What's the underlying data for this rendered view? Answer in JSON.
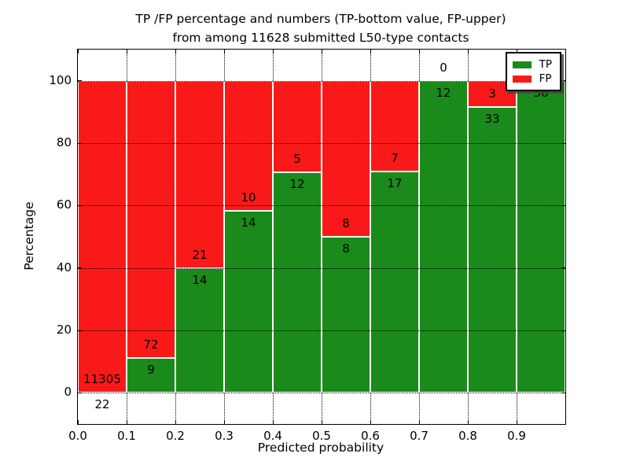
{
  "figure": {
    "title_line1": "TP /FP percentage and numbers (TP-bottom value, FP-upper)",
    "title_line2": "from among 11628 submitted L50-type contacts",
    "xlabel": "Predicted probability",
    "ylabel": "Percentage"
  },
  "legend": {
    "items": [
      {
        "label": "TP",
        "color": "#1a8a1a"
      },
      {
        "label": "FP",
        "color": "#fa1919"
      }
    ]
  },
  "chart_data": {
    "type": "bar",
    "stacked": true,
    "normalized_to_percent": true,
    "title": "TP /FP percentage and numbers (TP-bottom value, FP-upper) from among 11628 submitted L50-type contacts",
    "xlabel": "Predicted probability",
    "ylabel": "Percentage",
    "total_submitted_contacts": 11628,
    "categories": [
      "0.0-0.1",
      "0.1-0.2",
      "0.2-0.3",
      "0.3-0.4",
      "0.4-0.5",
      "0.5-0.6",
      "0.6-0.7",
      "0.7-0.8",
      "0.8-0.9",
      "0.9-1.0"
    ],
    "series": [
      {
        "name": "TP",
        "color": "#1a8a1a",
        "values": [
          22,
          9,
          14,
          14,
          12,
          8,
          17,
          12,
          33,
          56
        ]
      },
      {
        "name": "FP",
        "color": "#fa1919",
        "values": [
          11305,
          72,
          21,
          10,
          5,
          8,
          7,
          0,
          3,
          0
        ]
      }
    ],
    "tp_percent": [
      0.19,
      11.11,
      40.0,
      58.33,
      70.59,
      50.0,
      70.83,
      100.0,
      91.67,
      100.0
    ],
    "tp_labels": [
      "22",
      "9",
      "14",
      "14",
      "12",
      "8",
      "17",
      "12",
      "33",
      "56"
    ],
    "fp_labels": [
      "11305",
      "72",
      "21",
      "10",
      "5",
      "8",
      "7",
      "0",
      "3",
      ""
    ],
    "xticks": [
      "0.0",
      "0.1",
      "0.2",
      "0.3",
      "0.4",
      "0.5",
      "0.6",
      "0.7",
      "0.8",
      "0.9"
    ],
    "yticks": [
      0,
      20,
      40,
      60,
      80,
      100
    ],
    "xlim": [
      0.0,
      1.0
    ],
    "ylim": [
      -10,
      110
    ],
    "grid": true,
    "legend_position": "upper right"
  }
}
